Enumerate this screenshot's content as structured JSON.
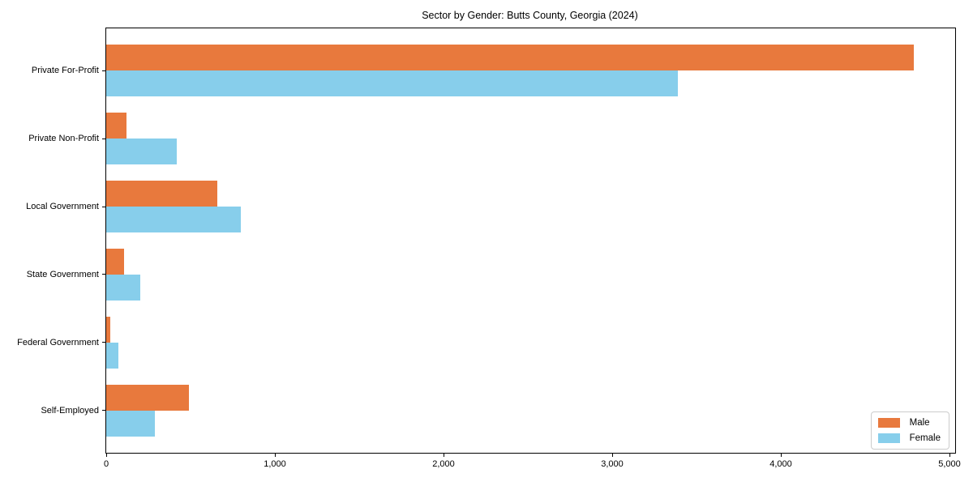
{
  "chart_data": {
    "type": "bar",
    "orientation": "horizontal",
    "title": "Sector by Gender: Butts County, Georgia (2024)",
    "categories": [
      "Private For-Profit",
      "Private Non-Profit",
      "Local Government",
      "State Government",
      "Federal Government",
      "Self-Employed"
    ],
    "series": [
      {
        "name": "Male",
        "color": "#e8793d",
        "values": [
          4790,
          120,
          660,
          105,
          25,
          490
        ]
      },
      {
        "name": "Female",
        "color": "#87ceeb",
        "values": [
          3390,
          420,
          800,
          200,
          70,
          290
        ]
      }
    ],
    "xlabel": "",
    "ylabel": "",
    "xlim": [
      0,
      5000
    ],
    "x_tick_values": [
      0,
      1000,
      2000,
      3000,
      4000,
      5000
    ],
    "x_tick_labels": [
      "0",
      "1,000",
      "2,000",
      "3,000",
      "4,000",
      "5,000"
    ],
    "grid": false,
    "legend": {
      "position": "lower right",
      "entries": [
        "Male",
        "Female"
      ]
    },
    "colors": {
      "male": "#e8793d",
      "female": "#87ceeb",
      "spine": "#000000",
      "legend_border": "#cccccc"
    }
  }
}
